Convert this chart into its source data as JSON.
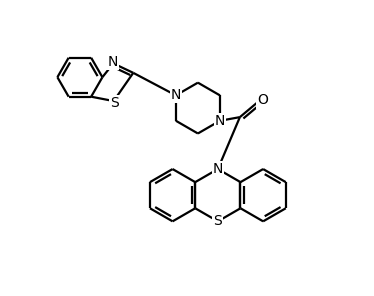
{
  "background_color": "#ffffff",
  "line_color": "#000000",
  "line_width": 1.6,
  "font_size": 10,
  "fig_width": 3.74,
  "fig_height": 2.96,
  "xlim": [
    0,
    10
  ],
  "ylim": [
    0,
    8
  ]
}
